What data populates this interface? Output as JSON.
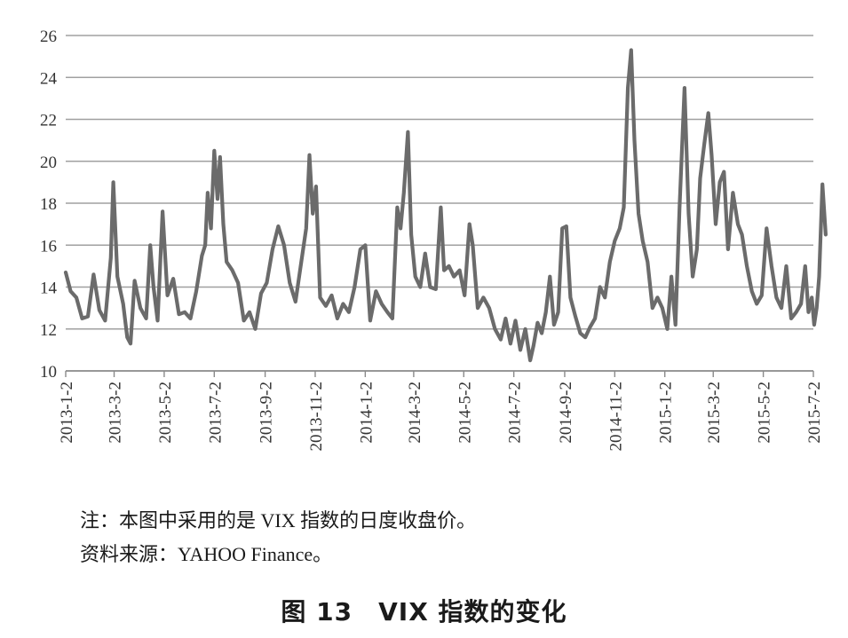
{
  "chart_data": {
    "type": "line",
    "title": "",
    "xlabel": "",
    "ylabel": "",
    "ylim": [
      10,
      26
    ],
    "yticks": [
      10,
      12,
      14,
      16,
      18,
      20,
      22,
      24,
      26
    ],
    "grid": "horizontal",
    "legend": "none",
    "x_tick_labels": [
      "2013-1-2",
      "2013-3-2",
      "2013-5-2",
      "2013-7-2",
      "2013-9-2",
      "2013-11-2",
      "2014-1-2",
      "2014-3-2",
      "2014-5-2",
      "2014-7-2",
      "2014-9-2",
      "2014-11-2",
      "2015-1-2",
      "2015-3-2",
      "2015-5-2",
      "2015-7-2"
    ],
    "line_color": "#6b6b6b",
    "series": [
      {
        "name": "",
        "points": [
          [
            "2013-01-02",
            14.7
          ],
          [
            "2013-01-08",
            13.8
          ],
          [
            "2013-01-15",
            13.5
          ],
          [
            "2013-01-22",
            12.5
          ],
          [
            "2013-01-29",
            12.6
          ],
          [
            "2013-02-05",
            14.6
          ],
          [
            "2013-02-12",
            12.9
          ],
          [
            "2013-02-19",
            12.4
          ],
          [
            "2013-02-26",
            15.4
          ],
          [
            "2013-03-01",
            19.0
          ],
          [
            "2013-03-06",
            14.5
          ],
          [
            "2013-03-13",
            13.2
          ],
          [
            "2013-03-18",
            11.6
          ],
          [
            "2013-03-22",
            11.3
          ],
          [
            "2013-03-27",
            14.3
          ],
          [
            "2013-04-03",
            13.0
          ],
          [
            "2013-04-10",
            12.5
          ],
          [
            "2013-04-15",
            16.0
          ],
          [
            "2013-04-19",
            14.0
          ],
          [
            "2013-04-24",
            12.4
          ],
          [
            "2013-04-30",
            17.6
          ],
          [
            "2013-05-06",
            13.6
          ],
          [
            "2013-05-13",
            14.4
          ],
          [
            "2013-05-20",
            12.7
          ],
          [
            "2013-05-27",
            12.8
          ],
          [
            "2013-06-03",
            12.5
          ],
          [
            "2013-06-10",
            13.8
          ],
          [
            "2013-06-17",
            15.5
          ],
          [
            "2013-06-21",
            16.0
          ],
          [
            "2013-06-24",
            18.5
          ],
          [
            "2013-06-28",
            16.8
          ],
          [
            "2013-07-02",
            20.5
          ],
          [
            "2013-07-06",
            18.2
          ],
          [
            "2013-07-09",
            20.2
          ],
          [
            "2013-07-13",
            17.0
          ],
          [
            "2013-07-17",
            15.2
          ],
          [
            "2013-07-24",
            14.8
          ],
          [
            "2013-07-31",
            14.2
          ],
          [
            "2013-08-07",
            12.4
          ],
          [
            "2013-08-14",
            12.8
          ],
          [
            "2013-08-21",
            12.0
          ],
          [
            "2013-08-28",
            13.7
          ],
          [
            "2013-09-04",
            14.2
          ],
          [
            "2013-09-11",
            15.8
          ],
          [
            "2013-09-18",
            16.9
          ],
          [
            "2013-09-25",
            16.0
          ],
          [
            "2013-10-02",
            14.2
          ],
          [
            "2013-10-09",
            13.3
          ],
          [
            "2013-10-16",
            15.2
          ],
          [
            "2013-10-22",
            16.8
          ],
          [
            "2013-10-26",
            20.3
          ],
          [
            "2013-10-30",
            17.5
          ],
          [
            "2013-11-03",
            18.8
          ],
          [
            "2013-11-08",
            13.5
          ],
          [
            "2013-11-15",
            13.1
          ],
          [
            "2013-11-22",
            13.6
          ],
          [
            "2013-11-29",
            12.5
          ],
          [
            "2013-12-06",
            13.2
          ],
          [
            "2013-12-13",
            12.8
          ],
          [
            "2013-12-20",
            14.0
          ],
          [
            "2013-12-27",
            15.8
          ],
          [
            "2014-01-02",
            16.0
          ],
          [
            "2014-01-08",
            12.4
          ],
          [
            "2014-01-15",
            13.8
          ],
          [
            "2014-01-22",
            13.2
          ],
          [
            "2014-01-29",
            12.8
          ],
          [
            "2014-02-04",
            12.5
          ],
          [
            "2014-02-10",
            17.8
          ],
          [
            "2014-02-14",
            16.8
          ],
          [
            "2014-02-18",
            18.5
          ],
          [
            "2014-02-23",
            21.4
          ],
          [
            "2014-02-27",
            16.5
          ],
          [
            "2014-03-04",
            14.5
          ],
          [
            "2014-03-10",
            14.0
          ],
          [
            "2014-03-16",
            15.6
          ],
          [
            "2014-03-22",
            14.0
          ],
          [
            "2014-03-29",
            13.9
          ],
          [
            "2014-04-04",
            17.8
          ],
          [
            "2014-04-08",
            14.8
          ],
          [
            "2014-04-14",
            15.0
          ],
          [
            "2014-04-20",
            14.5
          ],
          [
            "2014-04-27",
            14.8
          ],
          [
            "2014-05-03",
            13.6
          ],
          [
            "2014-05-09",
            17.0
          ],
          [
            "2014-05-13",
            16.0
          ],
          [
            "2014-05-19",
            13.0
          ],
          [
            "2014-05-26",
            13.5
          ],
          [
            "2014-06-02",
            13.0
          ],
          [
            "2014-06-09",
            12.0
          ],
          [
            "2014-06-16",
            11.5
          ],
          [
            "2014-06-22",
            12.5
          ],
          [
            "2014-06-28",
            11.3
          ],
          [
            "2014-07-04",
            12.4
          ],
          [
            "2014-07-10",
            11.0
          ],
          [
            "2014-07-16",
            12.0
          ],
          [
            "2014-07-22",
            10.5
          ],
          [
            "2014-07-26",
            11.2
          ],
          [
            "2014-07-31",
            12.3
          ],
          [
            "2014-08-05",
            11.8
          ],
          [
            "2014-08-10",
            12.8
          ],
          [
            "2014-08-15",
            14.5
          ],
          [
            "2014-08-20",
            12.2
          ],
          [
            "2014-08-25",
            12.8
          ],
          [
            "2014-08-30",
            16.8
          ],
          [
            "2014-09-04",
            16.9
          ],
          [
            "2014-09-09",
            13.5
          ],
          [
            "2014-09-15",
            12.6
          ],
          [
            "2014-09-21",
            11.8
          ],
          [
            "2014-09-27",
            11.6
          ],
          [
            "2014-10-03",
            12.1
          ],
          [
            "2014-10-09",
            12.5
          ],
          [
            "2014-10-15",
            14.0
          ],
          [
            "2014-10-21",
            13.5
          ],
          [
            "2014-10-27",
            15.2
          ],
          [
            "2014-11-02",
            16.2
          ],
          [
            "2014-11-08",
            16.8
          ],
          [
            "2014-11-13",
            17.8
          ],
          [
            "2014-11-18",
            23.5
          ],
          [
            "2014-11-22",
            25.3
          ],
          [
            "2014-11-26",
            21.0
          ],
          [
            "2014-12-01",
            17.5
          ],
          [
            "2014-12-06",
            16.2
          ],
          [
            "2014-12-12",
            15.2
          ],
          [
            "2014-12-18",
            13.0
          ],
          [
            "2014-12-24",
            13.5
          ],
          [
            "2014-12-30",
            13.0
          ],
          [
            "2015-01-05",
            12.0
          ],
          [
            "2015-01-10",
            14.5
          ],
          [
            "2015-01-15",
            12.2
          ],
          [
            "2015-01-20",
            17.8
          ],
          [
            "2015-01-26",
            23.5
          ],
          [
            "2015-01-31",
            17.5
          ],
          [
            "2015-02-05",
            14.5
          ],
          [
            "2015-02-10",
            15.8
          ],
          [
            "2015-02-14",
            19.2
          ],
          [
            "2015-02-19",
            20.8
          ],
          [
            "2015-02-24",
            22.3
          ],
          [
            "2015-02-28",
            20.3
          ],
          [
            "2015-03-05",
            17.0
          ],
          [
            "2015-03-10",
            19.0
          ],
          [
            "2015-03-15",
            19.5
          ],
          [
            "2015-03-20",
            15.8
          ],
          [
            "2015-03-26",
            18.5
          ],
          [
            "2015-04-01",
            17.0
          ],
          [
            "2015-04-06",
            16.5
          ],
          [
            "2015-04-12",
            15.0
          ],
          [
            "2015-04-18",
            13.8
          ],
          [
            "2015-04-24",
            13.2
          ],
          [
            "2015-04-30",
            13.6
          ],
          [
            "2015-05-06",
            16.8
          ],
          [
            "2015-05-12",
            15.0
          ],
          [
            "2015-05-18",
            13.5
          ],
          [
            "2015-05-24",
            13.0
          ],
          [
            "2015-05-30",
            15.0
          ],
          [
            "2015-06-05",
            12.5
          ],
          [
            "2015-06-11",
            12.8
          ],
          [
            "2015-06-17",
            13.2
          ],
          [
            "2015-06-22",
            15.0
          ],
          [
            "2015-06-26",
            12.8
          ],
          [
            "2015-06-30",
            13.5
          ],
          [
            "2015-07-03",
            12.2
          ],
          [
            "2015-07-06",
            13.0
          ],
          [
            "2015-07-09",
            14.5
          ],
          [
            "2015-07-13",
            18.9
          ],
          [
            "2015-07-17",
            16.5
          ]
        ]
      }
    ]
  },
  "notes": {
    "note_line": "注：本图中采用的是 VIX 指数的日度收盘价。",
    "source_line": "资料来源：YAHOO Finance。"
  },
  "caption": "图 13　VIX 指数的变化"
}
